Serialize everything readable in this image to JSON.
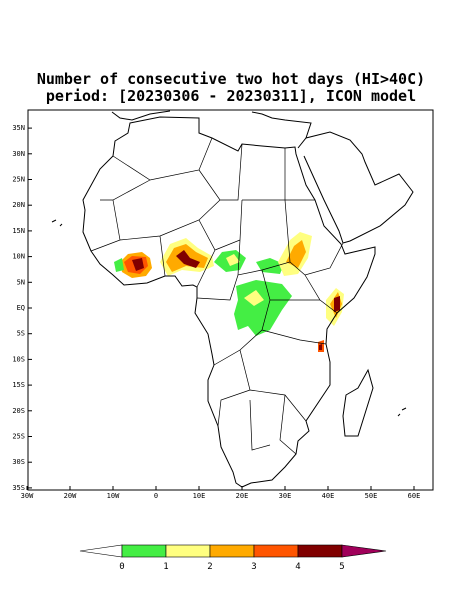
{
  "title": [
    "Number of consecutive two hot days (HI>40C)",
    "period: [20230306 - 20230311], ICON model"
  ],
  "map": {
    "xticks": [
      {
        "value": -30,
        "label": "30W"
      },
      {
        "value": -20,
        "label": "20W"
      },
      {
        "value": -10,
        "label": "10W"
      },
      0,
      {
        "value": 10,
        "label": "10E"
      },
      {
        "value": 20,
        "label": "20E"
      },
      {
        "value": 30,
        "label": "30E"
      },
      {
        "value": 40,
        "label": "40E"
      },
      {
        "value": 50,
        "label": "50E"
      },
      {
        "value": 60,
        "label": "60E"
      }
    ],
    "yticks": [
      {
        "value": 35,
        "label": "35N"
      },
      {
        "value": 30,
        "label": "30N"
      },
      {
        "value": 25,
        "label": "25N"
      },
      {
        "value": 20,
        "label": "20N"
      },
      {
        "value": 15,
        "label": "15N"
      },
      {
        "value": 10,
        "label": "10N"
      },
      {
        "value": 5,
        "label": "5N"
      },
      {
        "value": 0,
        "label": "EQ"
      },
      {
        "value": -5,
        "label": "5S"
      },
      {
        "value": -10,
        "label": "10S"
      },
      {
        "value": -15,
        "label": "15S"
      },
      {
        "value": -20,
        "label": "20S"
      },
      {
        "value": -25,
        "label": "25S"
      },
      {
        "value": -30,
        "label": "30S"
      },
      {
        "value": -35,
        "label": "35S"
      }
    ]
  },
  "colorbar": {
    "levels": [
      0,
      1,
      2,
      3,
      4,
      5
    ],
    "colors": [
      "#ffffff",
      "#44ee44",
      "#ffff80",
      "#ffaa00",
      "#ff5500",
      "#800000",
      "#a0005a"
    ]
  }
}
